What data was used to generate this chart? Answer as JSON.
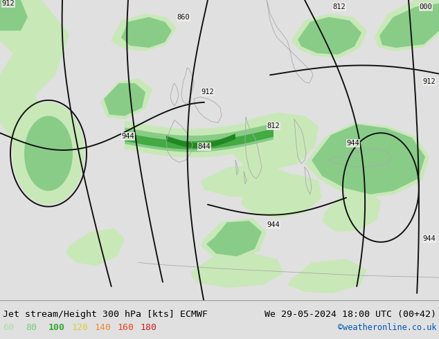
{
  "title_left": "Jet stream/Height 300 hPa [kts] ECMWF",
  "title_right": "We 29-05-2024 18:00 UTC (00+42)",
  "credit": "©weatheronline.co.uk",
  "legend_values": [
    60,
    80,
    100,
    120,
    140,
    160,
    180
  ],
  "legend_colors": [
    "#aaddaa",
    "#77cc77",
    "#33aa33",
    "#ddcc44",
    "#ee8833",
    "#ee4422",
    "#cc2222"
  ],
  "bg_color": "#e0e0e0",
  "map_bg": "#f0efea",
  "figsize": [
    6.34,
    4.9
  ],
  "dpi": 100,
  "bottom_bar_color": "#cccccc",
  "title_color": "#000000",
  "credit_color": "#0055bb",
  "land_color": "#e8e8e2",
  "coast_color": "#aaaaaa",
  "contour_color": "#111111",
  "wind60_color": "#c8e8b8",
  "wind80_color": "#88cc88",
  "wind100_color": "#44aa44",
  "ocean_color": "#f0eeea"
}
